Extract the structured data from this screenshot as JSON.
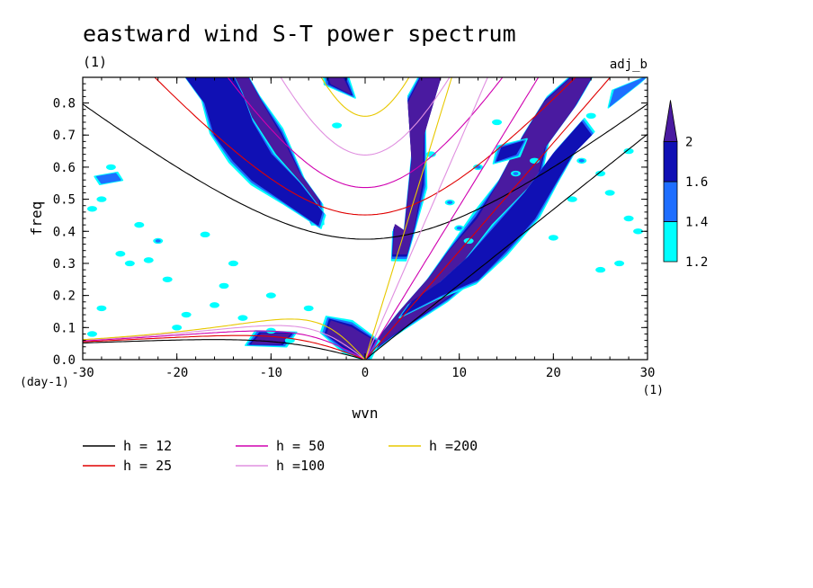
{
  "chart_data": {
    "type": "heatmap",
    "title": "eastward wind S-T power spectrum",
    "subtitle_left": "(1)",
    "subtitle_right": "adj_b",
    "xlabel": "wvn",
    "ylabel": "freq",
    "x_unit": "(1)",
    "y_unit": "(day-1)",
    "xlim": [
      -30,
      30
    ],
    "ylim": [
      0,
      0.88
    ],
    "x_ticks": [
      -30,
      -20,
      -10,
      0,
      10,
      20,
      30
    ],
    "x_tick_labels": [
      "-30",
      "-20",
      "-10",
      "0",
      "10",
      "20",
      "30"
    ],
    "y_ticks": [
      0,
      0.1,
      0.2,
      0.3,
      0.4,
      0.5,
      0.6,
      0.7,
      0.8
    ],
    "y_tick_labels": [
      "0.0",
      "0.1",
      "0.2",
      "0.3",
      "0.4",
      "0.5",
      "0.6",
      "0.7",
      "0.8"
    ],
    "colorbar": {
      "levels": [
        1.2,
        1.4,
        1.6,
        2
      ],
      "labels": [
        "1.2",
        "1.4",
        "1.6",
        "2"
      ],
      "colors": [
        "#00ffff",
        "#1e6eff",
        "#1010b4",
        "#4a1aa0"
      ]
    },
    "dispersion_curves": [
      {
        "name": "h = 12",
        "h": 12,
        "color": "#000000"
      },
      {
        "name": "h = 25",
        "h": 25,
        "color": "#e00000"
      },
      {
        "name": "h = 50",
        "h": 50,
        "color": "#d000b0"
      },
      {
        "name": "h =100",
        "h": 100,
        "color": "#e090e0"
      },
      {
        "name": "h =200",
        "h": 200,
        "color": "#e8c800"
      }
    ],
    "regions": [
      {
        "level": 4,
        "points": [
          [
            -3.6,
            0.86
          ],
          [
            -1.6,
            0.83
          ],
          [
            -2.4,
            0.88
          ],
          [
            -3.8,
            0.88
          ]
        ]
      },
      {
        "level": 4,
        "points": [
          [
            4.2,
            0.4
          ],
          [
            5.0,
            0.62
          ],
          [
            4.6,
            0.8
          ],
          [
            6.0,
            0.88
          ],
          [
            8.0,
            0.88
          ],
          [
            6.2,
            0.7
          ],
          [
            6.0,
            0.55
          ],
          [
            5.2,
            0.42
          ],
          [
            4.4,
            0.33
          ],
          [
            3.0,
            0.33
          ],
          [
            3.2,
            0.42
          ]
        ]
      },
      {
        "level": 4,
        "points": [
          [
            -6.0,
            0.44
          ],
          [
            -7.0,
            0.52
          ],
          [
            -9.0,
            0.57
          ],
          [
            -11.0,
            0.66
          ],
          [
            -12.0,
            0.74
          ],
          [
            -14.0,
            0.82
          ],
          [
            -15.0,
            0.88
          ],
          [
            -12.5,
            0.88
          ],
          [
            -11.0,
            0.8
          ],
          [
            -9.0,
            0.7
          ],
          [
            -7.0,
            0.58
          ],
          [
            -5.0,
            0.5
          ],
          [
            -4.8,
            0.44
          ]
        ]
      },
      {
        "level": 3,
        "points": [
          [
            -19.0,
            0.88
          ],
          [
            -17.0,
            0.8
          ],
          [
            -16.0,
            0.7
          ],
          [
            -14.0,
            0.62
          ],
          [
            -12.0,
            0.56
          ],
          [
            -9.0,
            0.5
          ],
          [
            -7.0,
            0.46
          ],
          [
            -5.0,
            0.42
          ],
          [
            -4.6,
            0.46
          ],
          [
            -7.0,
            0.55
          ],
          [
            -10.0,
            0.64
          ],
          [
            -12.0,
            0.74
          ],
          [
            -13.0,
            0.82
          ],
          [
            -14.0,
            0.88
          ]
        ]
      },
      {
        "level": 4,
        "points": [
          [
            0.4,
            0.02
          ],
          [
            3.0,
            0.08
          ],
          [
            6.0,
            0.14
          ],
          [
            9.0,
            0.2
          ],
          [
            12.0,
            0.28
          ],
          [
            14.0,
            0.36
          ],
          [
            16.0,
            0.44
          ],
          [
            18.0,
            0.54
          ],
          [
            19.0,
            0.66
          ],
          [
            22.0,
            0.78
          ],
          [
            24.0,
            0.88
          ],
          [
            22.0,
            0.88
          ],
          [
            19.0,
            0.8
          ],
          [
            16.5,
            0.68
          ],
          [
            14.0,
            0.54
          ],
          [
            12.0,
            0.44
          ],
          [
            9.0,
            0.34
          ],
          [
            7.0,
            0.26
          ],
          [
            4.0,
            0.16
          ],
          [
            1.8,
            0.08
          ]
        ]
      },
      {
        "level": 3,
        "points": [
          [
            4.0,
            0.14
          ],
          [
            8.0,
            0.2
          ],
          [
            12.0,
            0.25
          ],
          [
            15.0,
            0.34
          ],
          [
            18.0,
            0.44
          ],
          [
            20.0,
            0.54
          ],
          [
            22.0,
            0.64
          ],
          [
            24.0,
            0.7
          ],
          [
            23.0,
            0.74
          ],
          [
            20.0,
            0.64
          ],
          [
            17.0,
            0.52
          ],
          [
            14.0,
            0.42
          ],
          [
            11.0,
            0.32
          ],
          [
            8.0,
            0.24
          ],
          [
            5.0,
            0.18
          ]
        ]
      },
      {
        "level": 4,
        "points": [
          [
            -4.0,
            0.08
          ],
          [
            -2.0,
            0.04
          ],
          [
            0.0,
            0.01
          ],
          [
            0.8,
            0.06
          ],
          [
            -1.5,
            0.1
          ],
          [
            -3.6,
            0.12
          ]
        ]
      },
      {
        "level": 4,
        "points": [
          [
            -12.0,
            0.05
          ],
          [
            -9.0,
            0.05
          ],
          [
            -8.0,
            0.08
          ],
          [
            -11.0,
            0.08
          ]
        ]
      },
      {
        "level": 2,
        "points": [
          [
            -28.0,
            0.55
          ],
          [
            -26.0,
            0.56
          ],
          [
            -26.5,
            0.58
          ],
          [
            -28.5,
            0.57
          ]
        ]
      },
      {
        "level": 2,
        "points": [
          [
            26.0,
            0.79
          ],
          [
            29.0,
            0.86
          ],
          [
            29.8,
            0.88
          ],
          [
            26.5,
            0.84
          ]
        ]
      },
      {
        "level": 3,
        "points": [
          [
            14.0,
            0.62
          ],
          [
            16.0,
            0.64
          ],
          [
            16.8,
            0.68
          ],
          [
            14.5,
            0.66
          ]
        ]
      }
    ],
    "speckles": [
      [
        -28,
        0.5,
        1
      ],
      [
        -25,
        0.3,
        1
      ],
      [
        -21,
        0.25,
        1
      ],
      [
        -19,
        0.14,
        1
      ],
      [
        -13,
        0.13,
        1
      ],
      [
        -24,
        0.42,
        1
      ],
      [
        -26,
        0.33,
        1
      ],
      [
        -20,
        0.1,
        1
      ],
      [
        -15,
        0.23,
        1
      ],
      [
        -10,
        0.2,
        1
      ],
      [
        -22,
        0.37,
        2
      ],
      [
        -17,
        0.39,
        1
      ],
      [
        -27,
        0.6,
        1
      ],
      [
        -29,
        0.47,
        1
      ],
      [
        -23,
        0.31,
        1
      ],
      [
        -10,
        0.09,
        1
      ],
      [
        -6,
        0.16,
        1
      ],
      [
        -14,
        0.3,
        1
      ],
      [
        7,
        0.64,
        1
      ],
      [
        12,
        0.6,
        2
      ],
      [
        10,
        0.41,
        2
      ],
      [
        11,
        0.37,
        1
      ],
      [
        16,
        0.58,
        2
      ],
      [
        18,
        0.62,
        1
      ],
      [
        20,
        0.38,
        1
      ],
      [
        23,
        0.62,
        2
      ],
      [
        25,
        0.58,
        1
      ],
      [
        26,
        0.52,
        1
      ],
      [
        28,
        0.44,
        1
      ],
      [
        22,
        0.5,
        1
      ],
      [
        27,
        0.3,
        1
      ],
      [
        14,
        0.74,
        1
      ],
      [
        24,
        0.76,
        1
      ],
      [
        29,
        0.4,
        1
      ],
      [
        25,
        0.28,
        1
      ],
      [
        28,
        0.65,
        1
      ],
      [
        -28,
        0.16,
        1
      ],
      [
        -16,
        0.17,
        1
      ],
      [
        -8,
        0.06,
        1
      ],
      [
        -29,
        0.08,
        1
      ],
      [
        -3,
        0.73,
        1
      ],
      [
        9,
        0.49,
        2
      ]
    ]
  }
}
